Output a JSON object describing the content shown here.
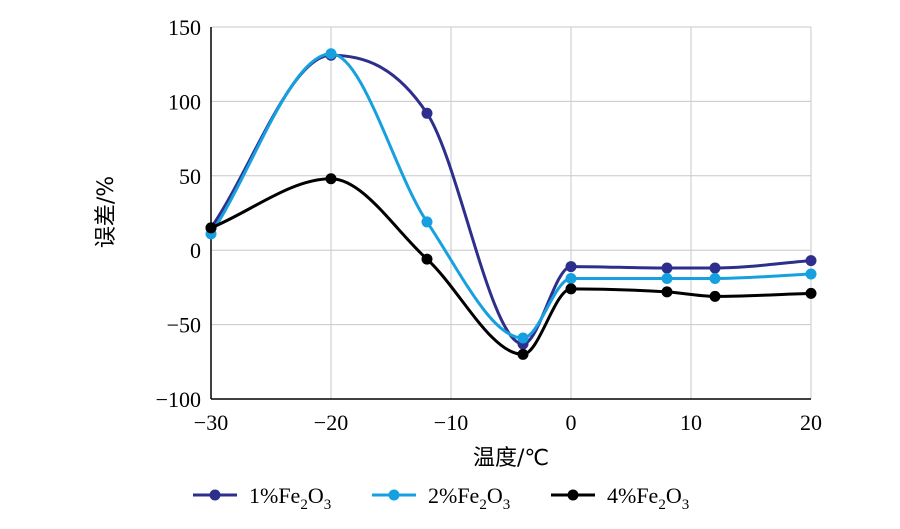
{
  "chart_data": {
    "type": "line",
    "title": "",
    "xlabel": "温度/℃",
    "ylabel": "误差/%",
    "xlim": [
      -30,
      20
    ],
    "ylim": [
      -100,
      150
    ],
    "xticks": [
      -30,
      -20,
      -10,
      0,
      10,
      20
    ],
    "yticks": [
      -100,
      -50,
      0,
      50,
      100,
      150
    ],
    "xtick_labels": [
      "−30",
      "−20",
      "−10",
      "0",
      "10",
      "20"
    ],
    "ytick_labels": [
      "−100",
      "−50",
      "0",
      "50",
      "100",
      "150"
    ],
    "grid": true,
    "smooth": true,
    "legend_position": "bottom",
    "series": [
      {
        "name": "1%Fe2O3",
        "name_parts": {
          "pre": "1%Fe",
          "sub1": "2",
          "mid": "O",
          "sub2": "3"
        },
        "color": "#2e2f8c",
        "points": [
          [
            -30,
            15
          ],
          [
            -20,
            131
          ],
          [
            -12,
            92
          ],
          [
            -4,
            -63
          ],
          [
            0,
            -11
          ],
          [
            8,
            -12
          ],
          [
            12,
            -12
          ],
          [
            20,
            -7
          ]
        ]
      },
      {
        "name": "2%Fe2O3",
        "name_parts": {
          "pre": "2%Fe",
          "sub1": "2",
          "mid": "O",
          "sub2": "3"
        },
        "color": "#17a0e0",
        "points": [
          [
            -30,
            11
          ],
          [
            -20,
            132
          ],
          [
            -12,
            19
          ],
          [
            -4,
            -59
          ],
          [
            0,
            -19
          ],
          [
            8,
            -19
          ],
          [
            12,
            -19
          ],
          [
            20,
            -16
          ]
        ]
      },
      {
        "name": "4%Fe2O3",
        "name_parts": {
          "pre": "4%Fe",
          "sub1": "2",
          "mid": "O",
          "sub2": "3"
        },
        "color": "#000000",
        "points": [
          [
            -30,
            15
          ],
          [
            -20,
            48
          ],
          [
            -12,
            -6
          ],
          [
            -4,
            -70
          ],
          [
            0,
            -26
          ],
          [
            8,
            -28
          ],
          [
            12,
            -31
          ],
          [
            20,
            -29
          ]
        ]
      }
    ]
  }
}
